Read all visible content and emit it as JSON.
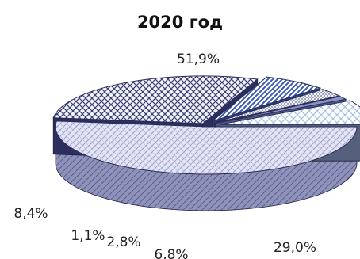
{
  "chart_data": {
    "type": "pie",
    "title": "2020 год",
    "slices": [
      {
        "label": "51,9%",
        "value": 51.9,
        "color": "#c9cce8",
        "side": "#8b8fb8",
        "pattern": "dots-diag"
      },
      {
        "label": "29,0%",
        "value": 29.0,
        "color": "#3b3f7a",
        "side": "#2c2f5e",
        "pattern": "cross"
      },
      {
        "label": "6,8%",
        "value": 6.8,
        "color": "#4660b8",
        "side": "#2a3c7c",
        "pattern": "stripe"
      },
      {
        "label": "2,8%",
        "value": 2.8,
        "color": "#9aa0b4",
        "side": "#5f6478",
        "pattern": "dots"
      },
      {
        "label": "1,1%",
        "value": 1.1,
        "color": "#8c93c8",
        "side": "#4f568c",
        "pattern": "plain"
      },
      {
        "label": "8,4%",
        "value": 8.4,
        "color": "#bcd0ec",
        "side": "#55617c",
        "pattern": "cross-light"
      }
    ]
  }
}
